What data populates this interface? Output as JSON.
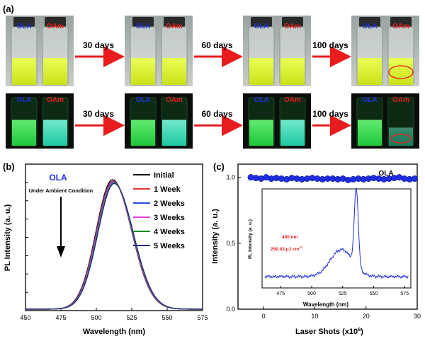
{
  "panel_a": {
    "label": "(a)",
    "rows": [
      {
        "name": "daylight",
        "vial_labels": [
          "OLA",
          "OAm"
        ],
        "arrows": [
          "30 days",
          "60 days",
          "100 days"
        ]
      },
      {
        "name": "uv",
        "vial_labels": [
          "OLA",
          "OAm"
        ],
        "arrows": [
          "30 days",
          "60 days",
          "100 days"
        ]
      }
    ]
  },
  "chart_data": [
    {
      "panel": "(b)",
      "type": "line",
      "title": "OLA",
      "annotation": "Under Ambient Condition",
      "xlabel": "Wavelength (nm)",
      "ylabel": "PL Intensity (a. u.)",
      "xlim": [
        450,
        575
      ],
      "xticks": [
        450,
        475,
        500,
        525,
        550,
        575
      ],
      "legend_position": "top-right",
      "peak_center_nm": 512,
      "series": [
        {
          "name": "Initial",
          "color": "#000000",
          "peak": 1.0
        },
        {
          "name": "1 Week",
          "color": "#e8322d",
          "peak": 0.99
        },
        {
          "name": "2 Weeks",
          "color": "#2b4be0",
          "peak": 0.985
        },
        {
          "name": "3 Weeks",
          "color": "#e040d8",
          "peak": 0.98
        },
        {
          "name": "4 Weeks",
          "color": "#1c8c2c",
          "peak": 0.975
        },
        {
          "name": "5 Weeks",
          "color": "#1a2a7a",
          "peak": 0.97
        }
      ]
    },
    {
      "panel": "(c)",
      "type": "scatter",
      "title": "OLA",
      "xlabel": "Laser Shots (x10",
      "xlabel_sup": "6",
      "xlabel_end": ")",
      "ylabel": "Intensity (a. u.)",
      "xlim": [
        -5,
        30
      ],
      "ylim": [
        0,
        1.1
      ],
      "xticks": [
        0,
        10,
        20,
        30
      ],
      "yticks": [
        "0.0",
        "0.5",
        "1.0"
      ],
      "ytick_values": [
        0,
        0.5,
        1.0
      ],
      "series": [
        {
          "name": "OLA",
          "color": "#1f2ee0",
          "x": [
            -2.5,
            -1.5,
            -0.5,
            0.5,
            1.5,
            2.5,
            3.5,
            4.5,
            5.5,
            6.5,
            7.5,
            8.5,
            9.5,
            10.5,
            11.5,
            12.5,
            13.5,
            14.5,
            15.5,
            16.5,
            17.5,
            18.5,
            19.5,
            20.5,
            21.5,
            22.5,
            23.5,
            24.5,
            25.5,
            26.5,
            27.5,
            28.5,
            29.5
          ],
          "y": [
            1.0,
            0.995,
            0.99,
            1.0,
            0.99,
            0.995,
            0.99,
            0.985,
            0.995,
            0.99,
            0.985,
            0.99,
            0.995,
            0.99,
            0.985,
            0.99,
            0.99,
            0.985,
            0.99,
            0.98,
            0.985,
            0.99,
            0.985,
            0.99,
            0.995,
            0.99,
            0.985,
            0.99,
            0.995,
            1.0,
            0.99,
            0.985,
            0.99
          ]
        }
      ],
      "inset": {
        "type": "line",
        "xlabel": "Wavelength (nm)",
        "ylabel": "PL Intensity (a. u.)",
        "xlim": [
          460,
          580
        ],
        "xticks": [
          475,
          500,
          525,
          550,
          575
        ],
        "annotation_line1": "400 nm",
        "annotation_line2": "290.43 μJ cm",
        "annotation_sup": "-2",
        "color": "#1f2ee0",
        "baseline": 0.15,
        "asepeak_center": 524,
        "asepeak_height": 0.55,
        "sharp_center": 536,
        "sharp_height": 0.95
      }
    }
  ]
}
